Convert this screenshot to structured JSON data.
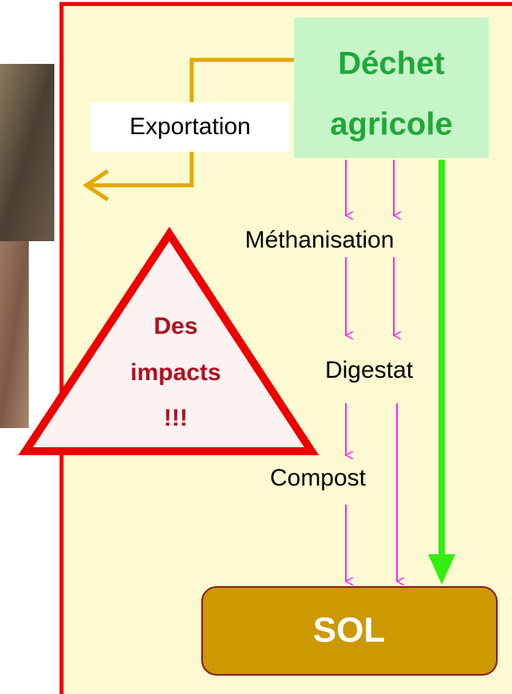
{
  "source": {
    "label_lines": [
      "Déchet",
      "agricole"
    ]
  },
  "export": {
    "label": "Exportation"
  },
  "steps": [
    "Méthanisation",
    "Digestat",
    "Compost"
  ],
  "destination": {
    "label": "SOL"
  },
  "warning": {
    "label_lines": [
      "Des",
      "impacts",
      "!!!"
    ]
  }
}
